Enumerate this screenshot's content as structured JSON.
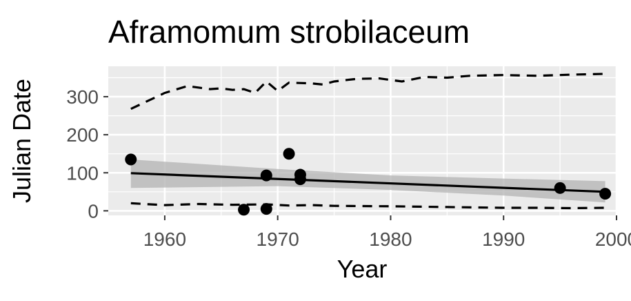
{
  "chart_data": {
    "type": "scatter",
    "title": "Aframomum strobilaceum",
    "xlabel": "Year",
    "ylabel": "Julian Date",
    "xlim": [
      1955,
      2000
    ],
    "ylim": [
      -12,
      380
    ],
    "x_ticks": [
      1960,
      1970,
      1980,
      1990,
      2000
    ],
    "y_ticks": [
      0,
      100,
      200,
      300
    ],
    "x_tick_labels": [
      "1960",
      "1970",
      "1980",
      "1990",
      "2000"
    ],
    "y_tick_labels": [
      "0",
      "100",
      "200",
      "300"
    ],
    "grid": true,
    "legend": "none",
    "points": [
      {
        "x": 1957,
        "y": 135
      },
      {
        "x": 1967,
        "y": 3
      },
      {
        "x": 1969,
        "y": 93
      },
      {
        "x": 1969,
        "y": 5
      },
      {
        "x": 1971,
        "y": 150
      },
      {
        "x": 1972,
        "y": 95
      },
      {
        "x": 1972,
        "y": 83
      },
      {
        "x": 1995,
        "y": 60
      },
      {
        "x": 1999,
        "y": 45
      }
    ],
    "trend_line": {
      "x": [
        1957,
        1999
      ],
      "y": [
        99,
        50
      ]
    },
    "confidence_band": {
      "x": [
        1957,
        1970,
        1980,
        1990,
        1999
      ],
      "upper": [
        135,
        110,
        93,
        85,
        78
      ],
      "lower": [
        60,
        65,
        55,
        40,
        22
      ]
    },
    "upper_dashed": {
      "x": [
        1957,
        1960,
        1962,
        1964,
        1965,
        1966,
        1967,
        1968,
        1969,
        1970,
        1971,
        1973,
        1974,
        1975,
        1977,
        1979,
        1981,
        1983,
        1985,
        1987,
        1990,
        1993,
        1996,
        1999
      ],
      "y": [
        268,
        310,
        328,
        320,
        322,
        318,
        320,
        310,
        340,
        315,
        337,
        335,
        332,
        340,
        347,
        348,
        340,
        352,
        350,
        355,
        357,
        355,
        358,
        360
      ]
    },
    "lower_dashed": {
      "x": [
        1957,
        1960,
        1963,
        1966,
        1969,
        1971,
        1973,
        1975,
        1980,
        1985,
        1990,
        1993,
        1996,
        1999
      ],
      "y": [
        20,
        15,
        18,
        16,
        17,
        14,
        15,
        13,
        12,
        10,
        8,
        8,
        7,
        8
      ]
    },
    "colors": {
      "panel": "#ebebeb",
      "grid": "#ffffff",
      "points": "#000000",
      "band": "#b3b3b3",
      "tick_text": "#4d4d4d",
      "text": "#000000"
    }
  }
}
